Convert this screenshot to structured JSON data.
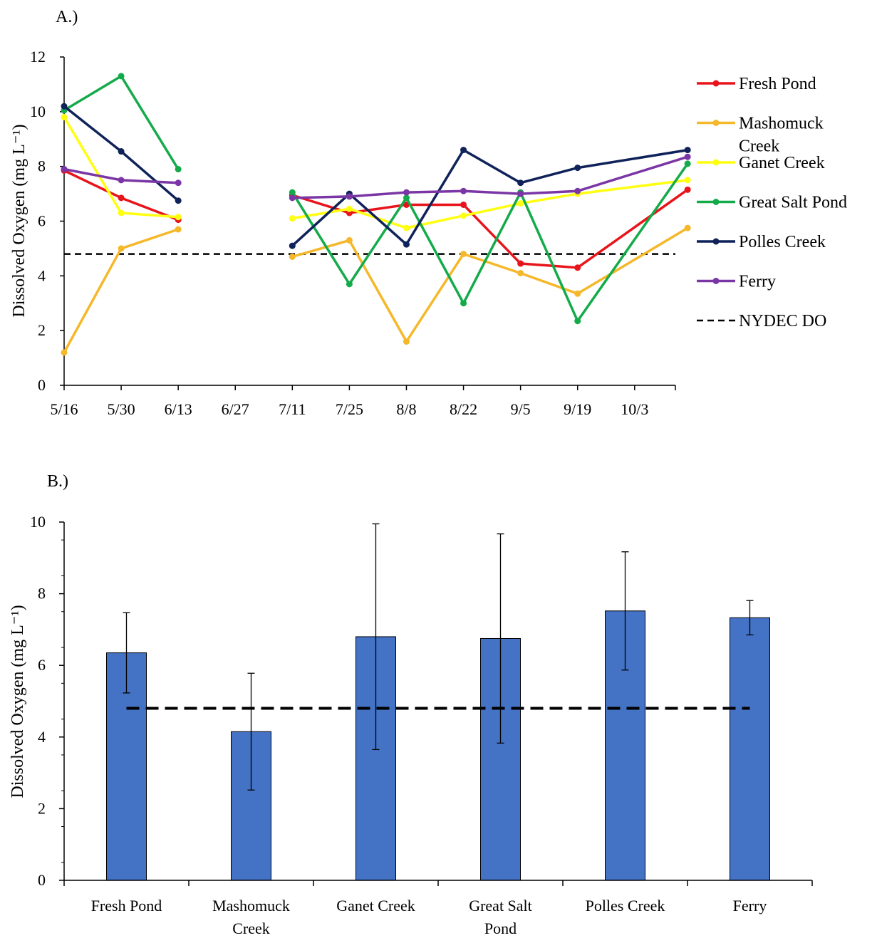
{
  "figure": {
    "panel_a_label": "A.)",
    "panel_b_label": "B.)"
  },
  "chart_data": [
    {
      "type": "line",
      "ylabel": "Dissolved Oxygen (mg L⁻¹)",
      "xlabel": "",
      "ylim": [
        0,
        12
      ],
      "yticks": [
        "0",
        "2",
        "4",
        "6",
        "8",
        "10",
        "12"
      ],
      "xticks": [
        "5/16",
        "5/30",
        "6/13",
        "6/27",
        "7/11",
        "7/25",
        "8/8",
        "8/22",
        "9/5",
        "9/19",
        "10/3"
      ],
      "xlim_days": [
        0,
        150
      ],
      "grid": false,
      "legend_position": "right",
      "x": [
        "5/16",
        "5/30",
        "6/13",
        "7/11",
        "7/25",
        "8/8",
        "8/22",
        "9/5",
        "9/19",
        "10/16"
      ],
      "series": [
        {
          "name": "Fresh Pond",
          "color": "#e8141b",
          "values": [
            7.85,
            6.85,
            6.05,
            6.95,
            6.3,
            6.6,
            6.6,
            4.45,
            4.3,
            7.15
          ]
        },
        {
          "name": "Mashomuck Creek",
          "color": "#f5b82a",
          "values": [
            1.2,
            5.0,
            5.7,
            4.7,
            5.3,
            1.6,
            4.8,
            4.1,
            3.35,
            5.75
          ]
        },
        {
          "name": "Ganet Creek",
          "color": "#ffff10",
          "values": [
            9.8,
            6.3,
            6.15,
            6.1,
            6.45,
            5.75,
            6.2,
            6.65,
            7.0,
            7.5
          ]
        },
        {
          "name": "Great Salt Pond",
          "color": "#13ab4a",
          "values": [
            10.05,
            11.3,
            7.9,
            7.05,
            3.7,
            6.85,
            3.0,
            7.05,
            2.35,
            8.1
          ]
        },
        {
          "name": "Polles Creek",
          "color": "#0f2259",
          "values": [
            10.2,
            8.55,
            6.75,
            5.1,
            7.0,
            5.15,
            8.6,
            7.4,
            7.95,
            8.6
          ]
        },
        {
          "name": "Ferry",
          "color": "#7b36a5",
          "values": [
            7.9,
            7.5,
            7.4,
            6.85,
            6.9,
            7.05,
            7.1,
            7.0,
            7.1,
            8.35
          ]
        }
      ],
      "reference_line": {
        "name": "NYDEC DO",
        "value": 4.8,
        "color": "#000000"
      }
    },
    {
      "type": "bar",
      "ylabel": "Dissolved Oxygen (mg L⁻¹)",
      "xlabel": "",
      "ylim": [
        0,
        10
      ],
      "yticks": [
        "0",
        "2",
        "4",
        "6",
        "8",
        "10"
      ],
      "categories": [
        [
          "Fresh Pond"
        ],
        [
          "Mashomuck",
          "Creek"
        ],
        [
          "Ganet Creek"
        ],
        [
          "Great Salt",
          "Pond"
        ],
        [
          "Polles Creek"
        ],
        [
          "Ferry"
        ]
      ],
      "values": [
        6.35,
        4.15,
        6.8,
        6.75,
        7.52,
        7.33
      ],
      "error": [
        1.12,
        1.63,
        3.15,
        2.92,
        1.65,
        0.48
      ],
      "bar_color": "#4472c4",
      "reference_line": {
        "value": 4.8,
        "color": "#000000"
      },
      "grid": false
    }
  ]
}
